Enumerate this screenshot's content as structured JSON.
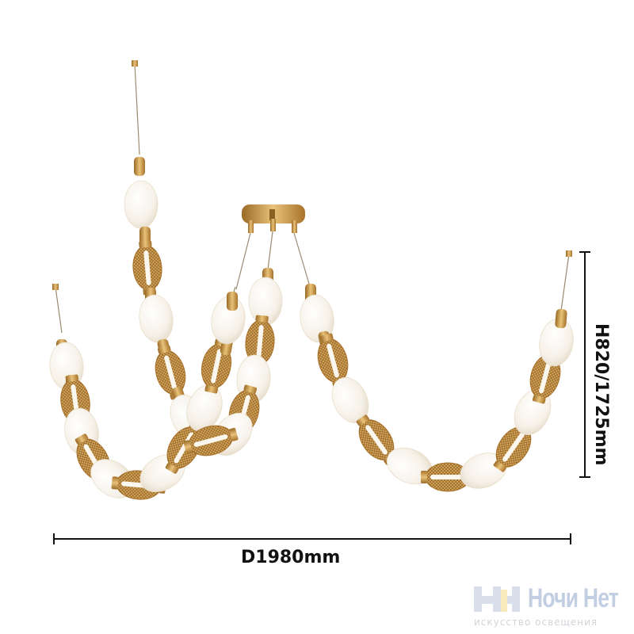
{
  "product": "Gold pendant chandelier with frosted and mesh beads",
  "dimensions": {
    "height_label": "H820/1725mm",
    "diameter_label": "D1980mm"
  },
  "watermark": {
    "brand": "Ночи Нет",
    "tagline": "искусство освещения"
  },
  "colors": {
    "gold": "#c8923e",
    "frosted": "#f7f3ec",
    "dimension_line": "#111111",
    "logo_blue": "#b8c6dc",
    "logo_yellow": "#f6e7b0"
  }
}
